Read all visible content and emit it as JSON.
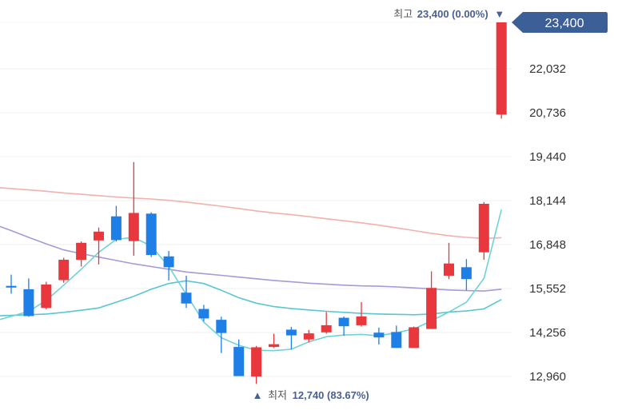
{
  "chart_data": {
    "type": "candlestick",
    "y_ticks": [
      12960,
      14256,
      15552,
      16848,
      18144,
      19440,
      20736,
      22032
    ],
    "ylim": [
      12600,
      23650
    ],
    "grid": true,
    "colors": {
      "up": "#e8383d",
      "down": "#1e7fe6",
      "ma_short": "#6fd3d6",
      "ma_mid": "#a79ad8",
      "ma_long": "#f1b2ad",
      "ma_medium_short": "#59c6d1",
      "badge": "#3d5f97",
      "label_text": "#4a5f93"
    },
    "candles": [
      {
        "open": 15630,
        "close": 15580,
        "high": 15960,
        "low": 15400
      },
      {
        "open": 15530,
        "close": 14740,
        "high": 15850,
        "low": 14720
      },
      {
        "open": 14980,
        "close": 15670,
        "high": 15750,
        "low": 14940
      },
      {
        "open": 15800,
        "close": 16400,
        "high": 16460,
        "low": 15720
      },
      {
        "open": 16400,
        "close": 16900,
        "high": 16940,
        "low": 16200
      },
      {
        "open": 16970,
        "close": 17230,
        "high": 17350,
        "low": 16260
      },
      {
        "open": 17680,
        "close": 16980,
        "high": 17990,
        "low": 16940
      },
      {
        "open": 16950,
        "close": 17780,
        "high": 19280,
        "low": 16520
      },
      {
        "open": 17760,
        "close": 16540,
        "high": 17800,
        "low": 16480
      },
      {
        "open": 16500,
        "close": 16180,
        "high": 16660,
        "low": 15790
      },
      {
        "open": 15430,
        "close": 15110,
        "high": 15930,
        "low": 14980
      },
      {
        "open": 14950,
        "close": 14670,
        "high": 15070,
        "low": 14580
      },
      {
        "open": 14630,
        "close": 14240,
        "high": 14720,
        "low": 13650
      },
      {
        "open": 13830,
        "close": 12970,
        "high": 14050,
        "low": 12970
      },
      {
        "open": 12960,
        "close": 13820,
        "high": 13860,
        "low": 12740
      },
      {
        "open": 13830,
        "close": 13910,
        "high": 14220,
        "low": 13800
      },
      {
        "open": 14340,
        "close": 14170,
        "high": 14420,
        "low": 13760
      },
      {
        "open": 14050,
        "close": 14230,
        "high": 14330,
        "low": 13960
      },
      {
        "open": 14260,
        "close": 14470,
        "high": 14860,
        "low": 14220
      },
      {
        "open": 14690,
        "close": 14440,
        "high": 14730,
        "low": 14160
      },
      {
        "open": 14470,
        "close": 14730,
        "high": 15150,
        "low": 14430
      },
      {
        "open": 14250,
        "close": 14110,
        "high": 14400,
        "low": 13900
      },
      {
        "open": 14270,
        "close": 13800,
        "high": 14460,
        "low": 13800
      },
      {
        "open": 13800,
        "close": 14410,
        "high": 14430,
        "low": 13800
      },
      {
        "open": 14360,
        "close": 15570,
        "high": 16060,
        "low": 14360
      },
      {
        "open": 15930,
        "close": 16290,
        "high": 16900,
        "low": 15830
      },
      {
        "open": 16180,
        "close": 15830,
        "high": 16420,
        "low": 15500
      },
      {
        "open": 16620,
        "close": 18050,
        "high": 18100,
        "low": 16400
      },
      {
        "open": 20680,
        "close": 23400,
        "high": 23400,
        "low": 20560
      }
    ],
    "ma_long": [
      18500,
      18460,
      18420,
      18370,
      18330,
      18290,
      18250,
      18220,
      18190,
      18150,
      18100,
      18040,
      17980,
      17910,
      17840,
      17780,
      17730,
      17670,
      17610,
      17550,
      17490,
      17420,
      17340,
      17260,
      17180,
      17110,
      17060,
      17030,
      17050
    ],
    "ma_mid": [
      17260,
      17060,
      16870,
      16690,
      16580,
      16480,
      16380,
      16280,
      16200,
      16120,
      16040,
      15990,
      15940,
      15890,
      15840,
      15790,
      15750,
      15710,
      15680,
      15650,
      15630,
      15620,
      15600,
      15570,
      15540,
      15510,
      15490,
      15480,
      15530
    ],
    "ma_medium_short": [
      14760,
      14780,
      14800,
      14850,
      14910,
      14980,
      15150,
      15320,
      15530,
      15700,
      15780,
      15700,
      15500,
      15280,
      15120,
      15020,
      14960,
      14920,
      14880,
      14850,
      14820,
      14800,
      14790,
      14780,
      14800,
      14860,
      14890,
      14950,
      15230
    ],
    "ma_short": [
      14730,
      14880,
      15200,
      15650,
      16120,
      16620,
      17000,
      17060,
      16800,
      16200,
      15380,
      14560,
      14100,
      13880,
      13730,
      13720,
      13760,
      13980,
      14130,
      14180,
      14200,
      14160,
      14250,
      14360,
      14600,
      14860,
      15150,
      15850,
      17880
    ],
    "high_label": {
      "prefix": "최고",
      "value": "23,400 (0.00%)",
      "marker": "▼"
    },
    "low_label": {
      "marker": "▲",
      "prefix": "최저",
      "value": "12,740 (83.67%)"
    },
    "current_price_badge": "23,400"
  }
}
